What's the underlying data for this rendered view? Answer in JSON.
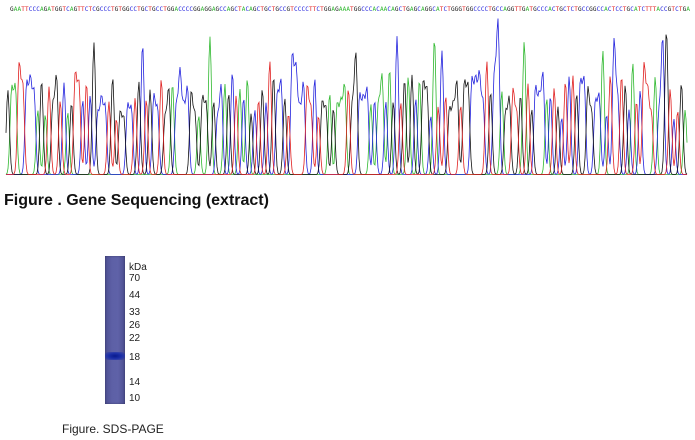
{
  "sequence": {
    "text": "GAATTCCCAGATGGTCAGTTCTCGCCCTGTGGCCTGCTGCCTGGACCCCGGAGGAGCCAGCTACAGCTGCTGCCGTCCCCTTCTGGAGAAATGGCCCACAACAGCTGAGCAGGCATCTGGGTGGCCCCTGCCAGGTTGATGCCCACTGCTCTGCCGGCCACTCCTGCATCTTTACCGTCTGA",
    "base_colors": {
      "A": "#2eb82e",
      "C": "#2222dd",
      "G": "#111111",
      "T": "#e02020"
    }
  },
  "figure_sequencing": {
    "caption": "Figure . Gene Sequencing (extract)"
  },
  "figure_gel": {
    "unit": "kDa",
    "markers": [
      "70",
      "44",
      "33",
      "26",
      "22",
      "18",
      "14",
      "10"
    ],
    "caption": "Figure. SDS-PAGE"
  }
}
